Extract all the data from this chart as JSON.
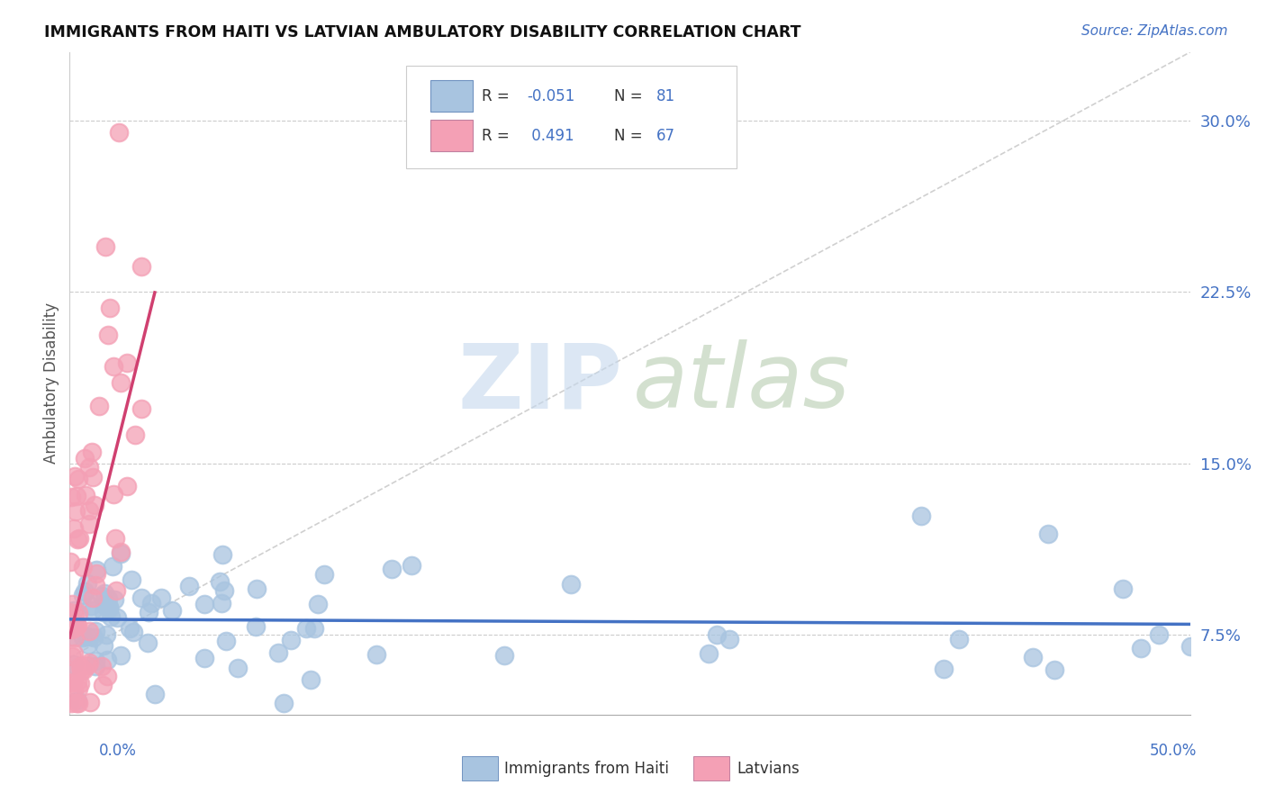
{
  "title": "IMMIGRANTS FROM HAITI VS LATVIAN AMBULATORY DISABILITY CORRELATION CHART",
  "source": "Source: ZipAtlas.com",
  "ylabel": "Ambulatory Disability",
  "legend_R1": "-0.051",
  "legend_N1": "81",
  "legend_R2": "0.491",
  "legend_N2": "67",
  "yticks": [
    0.075,
    0.15,
    0.225,
    0.3
  ],
  "ytick_labels": [
    "7.5%",
    "15.0%",
    "22.5%",
    "30.0%"
  ],
  "xlim": [
    0.0,
    0.5
  ],
  "ylim": [
    0.04,
    0.33
  ],
  "color_haiti": "#a8c4e0",
  "color_latvian": "#f4a0b5",
  "color_haiti_line": "#4472c4",
  "color_latvian_line": "#d04070",
  "color_diag": "#c8c8c8",
  "color_grid": "#cccccc",
  "color_title": "#111111",
  "color_source": "#4472c4",
  "color_ytick": "#4472c4",
  "color_xtick": "#4472c4",
  "color_ylabel": "#555555",
  "watermark_zip_color": "#c5d8ed",
  "watermark_atlas_color": "#b0c8a8"
}
